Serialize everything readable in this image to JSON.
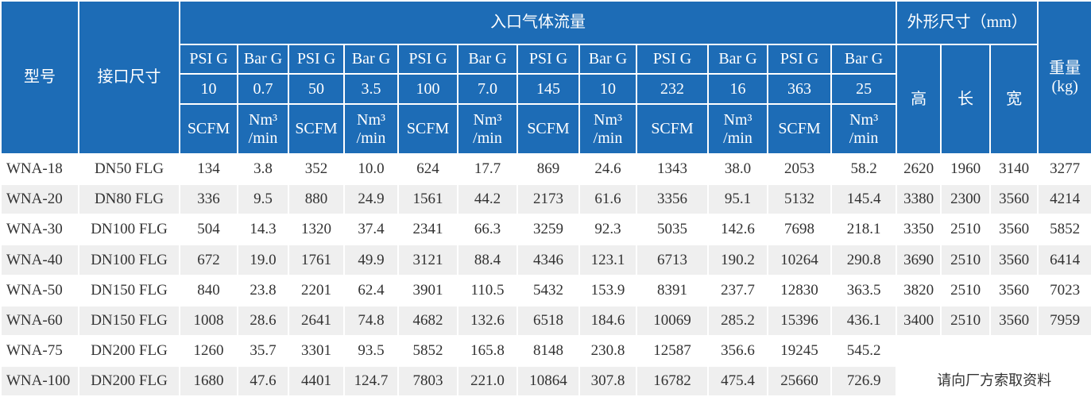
{
  "header": {
    "model": "型号",
    "port": "接口尺寸",
    "flow": "入口气体流量",
    "dims": "外形尺寸（mm）",
    "weight": "重量\n(kg)",
    "dim_cols": [
      "高",
      "长",
      "宽"
    ],
    "pressure_units": [
      "PSI G",
      "Bar G",
      "PSI G",
      "Bar G",
      "PSI G",
      "Bar G",
      "PSI G",
      "Bar G",
      "PSI G",
      "Bar G",
      "PSI G",
      "Bar G"
    ],
    "pressures": [
      "10",
      "0.7",
      "50",
      "3.5",
      "100",
      "7.0",
      "145",
      "10",
      "232",
      "16",
      "363",
      "25"
    ],
    "flow_units": [
      "SCFM",
      "Nm³\n/min",
      "SCFM",
      "Nm³\n/min",
      "SCFM",
      "Nm³\n/min",
      "SCFM",
      "Nm³\n/min",
      "SCFM",
      "Nm³\n/min",
      "SCFM",
      "Nm³\n/min"
    ]
  },
  "rows": [
    [
      "WNA-18",
      "DN50 FLG",
      "134",
      "3.8",
      "352",
      "10.0",
      "624",
      "17.7",
      "869",
      "24.6",
      "1343",
      "38.0",
      "2053",
      "58.2",
      "2620",
      "1960",
      "3140",
      "3277"
    ],
    [
      "WNA-20",
      "DN80 FLG",
      "336",
      "9.5",
      "880",
      "24.9",
      "1561",
      "44.2",
      "2173",
      "61.6",
      "3356",
      "95.1",
      "5132",
      "145.4",
      "3380",
      "2300",
      "3560",
      "4214"
    ],
    [
      "WNA-30",
      "DN100 FLG",
      "504",
      "14.3",
      "1320",
      "37.4",
      "2341",
      "66.3",
      "3259",
      "92.3",
      "5035",
      "142.6",
      "7698",
      "218.1",
      "3350",
      "2510",
      "3560",
      "5852"
    ],
    [
      "WNA-40",
      "DN100 FLG",
      "672",
      "19.0",
      "1761",
      "49.9",
      "3121",
      "88.4",
      "4346",
      "123.1",
      "6713",
      "190.2",
      "10264",
      "290.8",
      "3690",
      "2510",
      "3560",
      "6414"
    ],
    [
      "WNA-50",
      "DN150 FLG",
      "840",
      "23.8",
      "2201",
      "62.4",
      "3901",
      "110.5",
      "5432",
      "153.9",
      "8391",
      "237.7",
      "12830",
      "363.5",
      "3820",
      "2510",
      "3560",
      "7023"
    ],
    [
      "WNA-60",
      "DN150 FLG",
      "1008",
      "28.6",
      "2641",
      "74.8",
      "4682",
      "132.6",
      "6518",
      "184.6",
      "10069",
      "285.2",
      "15396",
      "436.1",
      "3400",
      "2510",
      "3560",
      "7959"
    ],
    [
      "WNA-75",
      "DN200 FLG",
      "1260",
      "35.7",
      "3301",
      "93.5",
      "5852",
      "165.8",
      "8148",
      "230.8",
      "12587",
      "356.6",
      "19245",
      "545.2"
    ],
    [
      "WNA-100",
      "DN200 FLG",
      "1680",
      "47.6",
      "4401",
      "124.7",
      "7803",
      "221.0",
      "10864",
      "307.8",
      "16782",
      "475.4",
      "25660",
      "726.9"
    ]
  ],
  "note": "请向厂方索取资料"
}
